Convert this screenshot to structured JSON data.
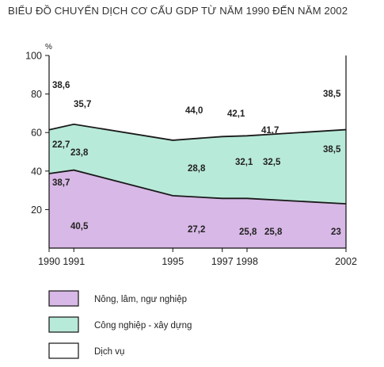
{
  "chart_data": {
    "type": "area",
    "stacked": true,
    "title": "BIỂU ĐỒ CHUYỂN DỊCH CƠ CẤU GDP TỪ NĂM 1990 ĐẾN NĂM 2002",
    "ylabel": "%",
    "xlabel": "",
    "x": [
      1990,
      1991,
      1995,
      1997,
      1998,
      2002
    ],
    "x_ticks": [
      "1990",
      "1991",
      "1995",
      "1997",
      "1998",
      "2002"
    ],
    "y_ticks": [
      "20",
      "40",
      "60",
      "80",
      "100"
    ],
    "ylim": [
      0,
      100
    ],
    "grid": false,
    "legend_position": "bottom",
    "series": [
      {
        "name": "Nông, lâm, ngư nghiệp",
        "values": [
          38.7,
          40.5,
          27.2,
          25.8,
          25.8,
          23
        ],
        "color": "#d8b8e6"
      },
      {
        "name": "Công nghiệp - xây dựng",
        "values": [
          22.7,
          23.8,
          28.8,
          32.1,
          32.5,
          38.5
        ],
        "color": "#b8ead9"
      },
      {
        "name": "Dịch vụ",
        "values": [
          38.6,
          35.7,
          44.0,
          42.1,
          41.7,
          38.5
        ],
        "color": "#ffffff"
      }
    ],
    "labels": {
      "agri": [
        "38,7",
        "40,5",
        "27,2",
        "25,8",
        "25,8",
        "23"
      ],
      "ind": [
        "22,7",
        "23,8",
        "28,8",
        "32,1",
        "32,5",
        "38,5"
      ],
      "serv": [
        "38,6",
        "35,7",
        "44,0",
        "42,1",
        "41,7",
        "38,5"
      ]
    }
  }
}
